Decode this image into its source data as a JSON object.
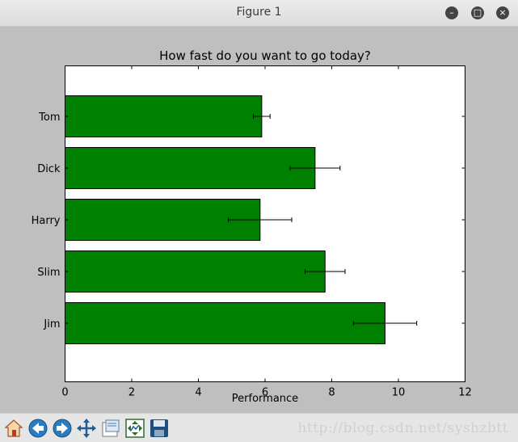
{
  "window": {
    "title": "Figure 1",
    "buttons": [
      "minimize-icon",
      "maximize-icon",
      "close-icon"
    ]
  },
  "toolbar": {
    "items": [
      "home-icon",
      "back-icon",
      "forward-icon",
      "pan-icon",
      "zoom-icon",
      "configure-subplots-icon",
      "save-icon"
    ],
    "watermark": "http://blog.csdn.net/syshzbtt"
  },
  "chart_data": {
    "type": "bar",
    "orientation": "horizontal",
    "title": "How fast do you want to go today?",
    "xlabel": "Performance",
    "ylabel": "",
    "categories": [
      "Tom",
      "Dick",
      "Harry",
      "Slim",
      "Jim"
    ],
    "values": [
      5.9,
      7.5,
      5.85,
      7.8,
      9.6
    ],
    "errors": [
      0.25,
      0.75,
      0.95,
      0.6,
      0.95
    ],
    "xlim": [
      0,
      12
    ],
    "xticks": [
      0,
      2,
      4,
      6,
      8,
      10,
      12
    ],
    "bar_color": "#008000",
    "error_color": "#000000",
    "grid": false
  }
}
